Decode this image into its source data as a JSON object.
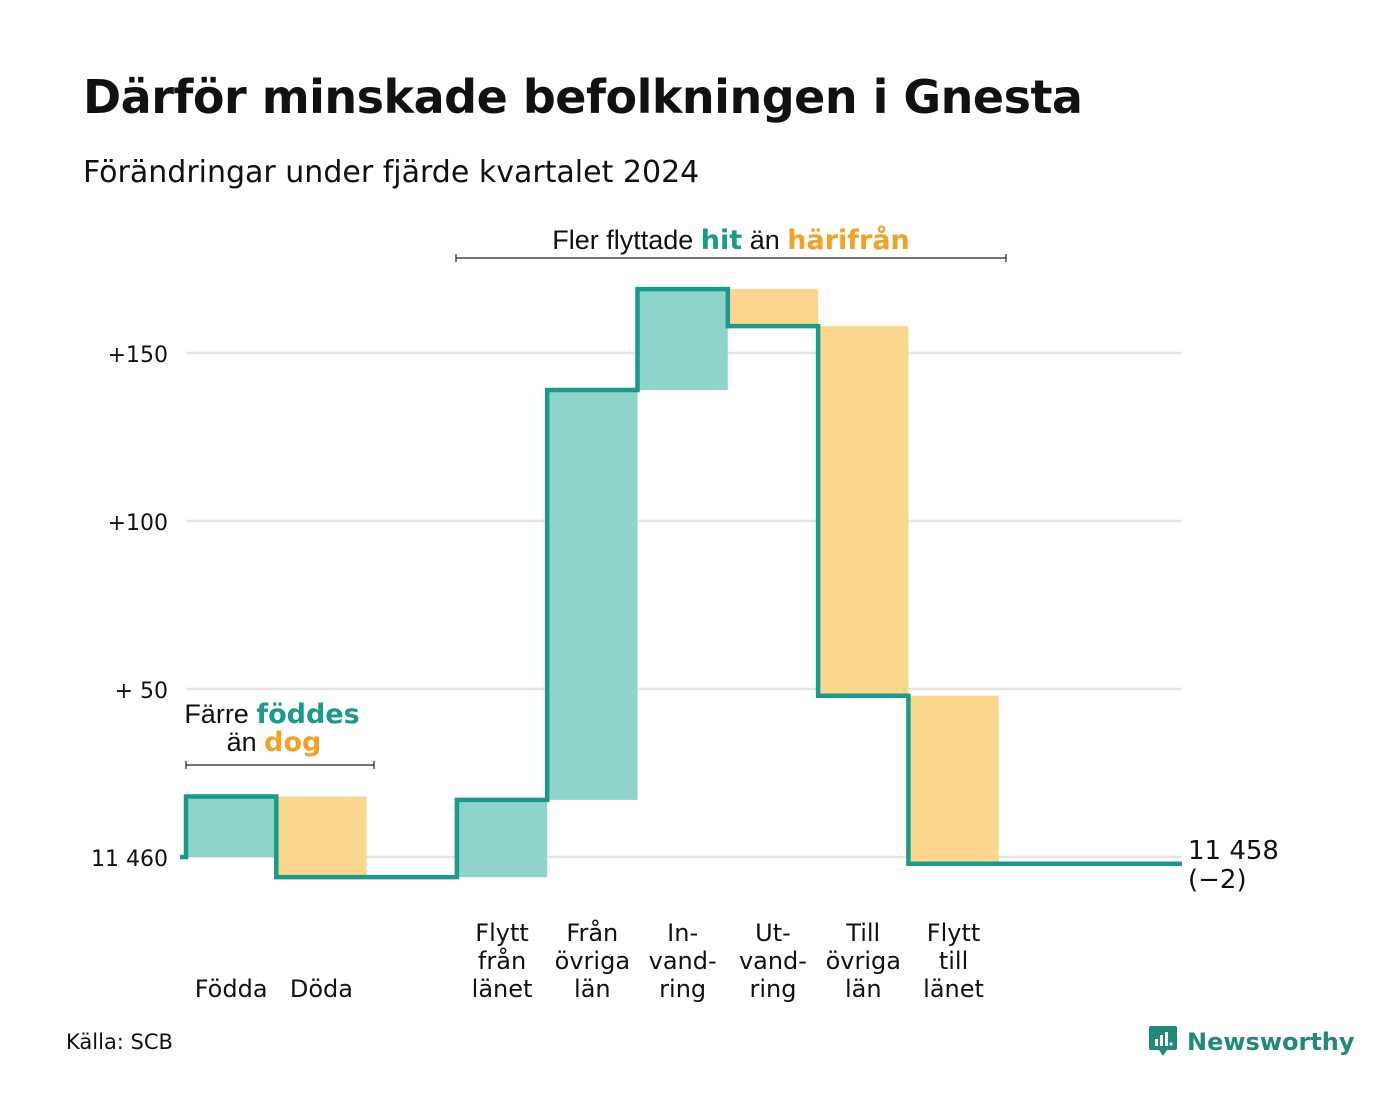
{
  "title": "Därför minskade befolkningen i Gnesta",
  "subtitle": "Förändringar under fjärde kvartalet 2024",
  "source": "Källa: SCB",
  "brand": {
    "name": "Newsworthy",
    "icon": "newsworthy-logo-icon"
  },
  "colors": {
    "teal": "#1a9a8a",
    "tealFill": "#8fd4cb",
    "orange": "#f2a223",
    "orangeFill": "#fbd68f",
    "grid": "#e4e4e4"
  },
  "annotations": {
    "migration": {
      "part1": "Fler flyttade",
      "hit": "hit",
      "part2": "än",
      "harifran": "härifrån"
    },
    "births": {
      "part1": "Färre",
      "foddes": "föddes",
      "part2": "än",
      "dog": "dog"
    }
  },
  "chart_data": {
    "type": "waterfall",
    "title": "Därför minskade befolkningen i Gnesta",
    "subtitle": "Förändringar under fjärde kvartalet 2024",
    "baseline": 11460,
    "ylim": [
      -10,
      170
    ],
    "yticks": [
      {
        "value": 0,
        "label": "11 460"
      },
      {
        "value": 50,
        "label": "+ 50"
      },
      {
        "value": 100,
        "label": "+100"
      },
      {
        "value": 150,
        "label": "+150"
      }
    ],
    "categories": [
      {
        "label": [
          "Födda"
        ],
        "change": 18,
        "kind": "in"
      },
      {
        "label": [
          "Döda"
        ],
        "change": -24,
        "kind": "out"
      },
      {
        "label": [],
        "change": 0,
        "kind": "gap"
      },
      {
        "label": [
          "Flytt",
          "från",
          "länet"
        ],
        "change": 23,
        "kind": "in"
      },
      {
        "label": [
          "Från",
          "övriga",
          "län"
        ],
        "change": 122,
        "kind": "in"
      },
      {
        "label": [
          "In-",
          "vand-",
          "ring"
        ],
        "change": 30,
        "kind": "in"
      },
      {
        "label": [
          "Ut-",
          "vand-",
          "ring"
        ],
        "change": -11,
        "kind": "out"
      },
      {
        "label": [
          "Till",
          "övriga",
          "län"
        ],
        "change": -110,
        "kind": "out"
      },
      {
        "label": [
          "Flytt",
          "till",
          "länet"
        ],
        "change": -50,
        "kind": "out"
      }
    ],
    "end": {
      "value": 11458,
      "change_label": "(−2)"
    },
    "grid": true,
    "legend": "none"
  }
}
